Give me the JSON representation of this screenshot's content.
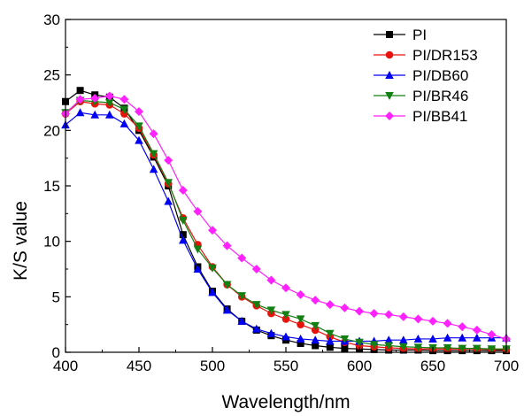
{
  "chart_data": {
    "type": "line",
    "xlabel": "Wavelength/nm",
    "ylabel": "K/S value",
    "xlim": [
      400,
      700
    ],
    "ylim": [
      0,
      30
    ],
    "xticks": [
      400,
      450,
      500,
      550,
      600,
      650,
      700
    ],
    "yticks": [
      0,
      5,
      10,
      15,
      20,
      25,
      30
    ],
    "grid": false,
    "legend_position": "top-right",
    "x": [
      400,
      410,
      420,
      430,
      440,
      450,
      460,
      470,
      480,
      490,
      500,
      510,
      520,
      530,
      540,
      550,
      560,
      570,
      580,
      590,
      600,
      610,
      620,
      630,
      640,
      650,
      660,
      670,
      680,
      690,
      700
    ],
    "series": [
      {
        "name": "PI",
        "color": "#000000",
        "marker": "square",
        "values": [
          22.6,
          23.6,
          23.2,
          23.0,
          22.0,
          20.0,
          17.6,
          15.0,
          10.6,
          7.7,
          5.5,
          3.9,
          2.8,
          2.0,
          1.5,
          1.1,
          0.8,
          0.6,
          0.45,
          0.35,
          0.3,
          0.25,
          0.2,
          0.2,
          0.2,
          0.15,
          0.15,
          0.15,
          0.15,
          0.15,
          0.15
        ]
      },
      {
        "name": "PI/DR153",
        "color": "#e8120c",
        "marker": "circle",
        "values": [
          21.5,
          22.6,
          22.4,
          22.3,
          21.5,
          20.2,
          17.8,
          15.2,
          12.1,
          9.7,
          7.7,
          6.1,
          5.0,
          4.2,
          3.5,
          3.0,
          2.5,
          2.0,
          1.4,
          0.9,
          0.6,
          0.5,
          0.4,
          0.35,
          0.3,
          0.3,
          0.3,
          0.3,
          0.3,
          0.25,
          0.25
        ]
      },
      {
        "name": "PI/DB60",
        "color": "#0000f2",
        "marker": "triangle-up",
        "values": [
          20.5,
          21.6,
          21.4,
          21.4,
          20.6,
          19.1,
          16.5,
          13.6,
          10.1,
          7.5,
          5.4,
          3.8,
          2.8,
          2.1,
          1.7,
          1.4,
          1.2,
          1.1,
          1.0,
          1.0,
          1.0,
          1.0,
          1.1,
          1.1,
          1.2,
          1.2,
          1.3,
          1.3,
          1.3,
          1.3,
          1.3
        ]
      },
      {
        "name": "PI/BR46",
        "color": "#128012",
        "marker": "triangle-down",
        "values": [
          21.6,
          22.7,
          22.6,
          22.5,
          21.9,
          20.4,
          17.9,
          15.3,
          11.9,
          9.3,
          7.6,
          6.1,
          5.1,
          4.3,
          3.8,
          3.4,
          3.0,
          2.4,
          1.7,
          1.2,
          0.9,
          0.7,
          0.6,
          0.5,
          0.45,
          0.4,
          0.4,
          0.35,
          0.35,
          0.3,
          0.3
        ]
      },
      {
        "name": "PI/BB41",
        "color": "#ff22ff",
        "marker": "diamond",
        "values": [
          21.5,
          22.8,
          22.9,
          23.1,
          22.8,
          21.7,
          19.7,
          17.3,
          14.6,
          12.7,
          11.0,
          9.6,
          8.5,
          7.5,
          6.5,
          5.8,
          5.2,
          4.7,
          4.3,
          4.0,
          3.7,
          3.5,
          3.4,
          3.2,
          3.0,
          2.8,
          2.6,
          2.3,
          2.0,
          1.6,
          1.2
        ]
      }
    ]
  }
}
